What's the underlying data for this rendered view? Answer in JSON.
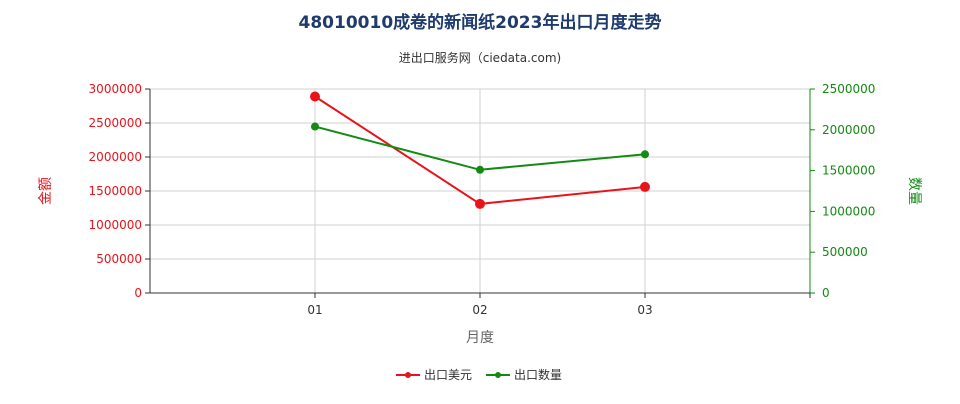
{
  "chart_data": {
    "type": "line",
    "title": "48010010成卷的新闻纸2023年出口月度走势",
    "subtitle": "进出口服务网（ciedata.com)",
    "xlabel": "月度",
    "ylabel_left": "金额",
    "ylabel_right": "数量",
    "categories": [
      "01",
      "02",
      "03"
    ],
    "ylim_left": [
      0,
      3000000
    ],
    "ylim_right": [
      0,
      2500000
    ],
    "yticks_left": [
      "0",
      "500000",
      "1000000",
      "1500000",
      "2000000",
      "2500000",
      "3000000"
    ],
    "yticks_right": [
      "0",
      "500000",
      "1000000",
      "1500000",
      "2000000",
      "2500000"
    ],
    "grid": true,
    "legend_position": "bottom",
    "series": [
      {
        "name": "出口美元",
        "axis": "left",
        "color": "#e8141b",
        "values": [
          2890000,
          1310000,
          1560000
        ]
      },
      {
        "name": "出口数量",
        "axis": "right",
        "color": "#138a13",
        "values": [
          2040000,
          1510000,
          1700000
        ]
      }
    ],
    "colors": {
      "title": "#1f3b6e",
      "left_axis": "#e8141b",
      "right_axis": "#138a13",
      "grid": "#d0d0d0"
    }
  }
}
